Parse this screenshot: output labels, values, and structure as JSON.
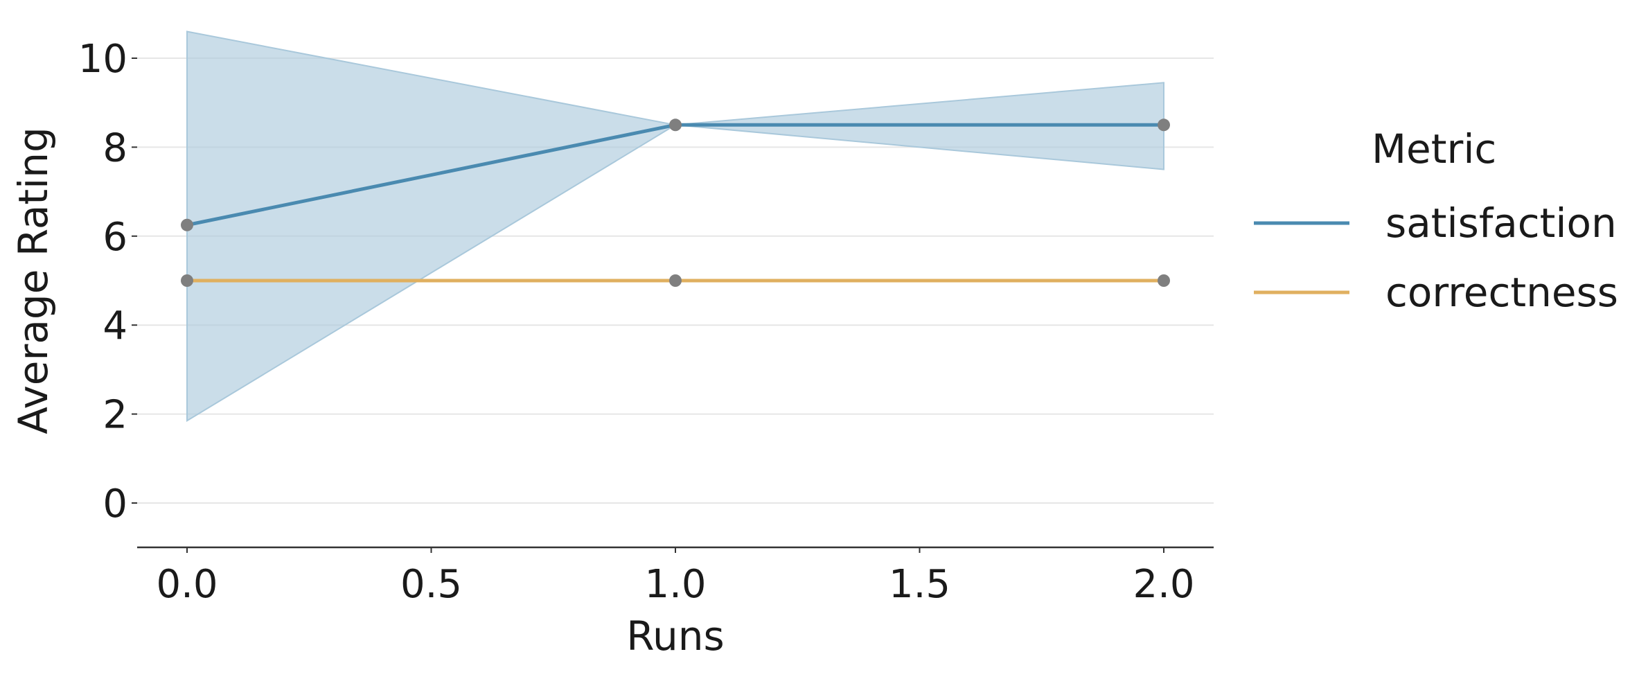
{
  "chart_data": {
    "type": "line",
    "xlabel": "Runs",
    "ylabel": "Average Rating",
    "xlim": [
      -0.1,
      2.1
    ],
    "ylim": [
      -1,
      10.6
    ],
    "x_ticks": [
      "0.0",
      "0.5",
      "1.0",
      "1.5",
      "2.0"
    ],
    "y_ticks": [
      "0",
      "2",
      "4",
      "6",
      "8",
      "10"
    ],
    "grid": "horizontal",
    "legend": {
      "title": "Metric",
      "placement": "outside-right"
    },
    "series": [
      {
        "name": "satisfaction",
        "color": "#4a8ab0",
        "x": [
          0,
          1,
          2
        ],
        "y": [
          6.25,
          8.5,
          8.5
        ],
        "ci_low": [
          1.85,
          8.5,
          7.5
        ],
        "ci_high": [
          10.6,
          8.5,
          9.45
        ],
        "band_color": "#a9c8db"
      },
      {
        "name": "correctness",
        "color": "#e0b060",
        "x": [
          0,
          1,
          2
        ],
        "y": [
          5,
          5,
          5
        ]
      }
    ],
    "marker_color": "#7f7f7f"
  }
}
